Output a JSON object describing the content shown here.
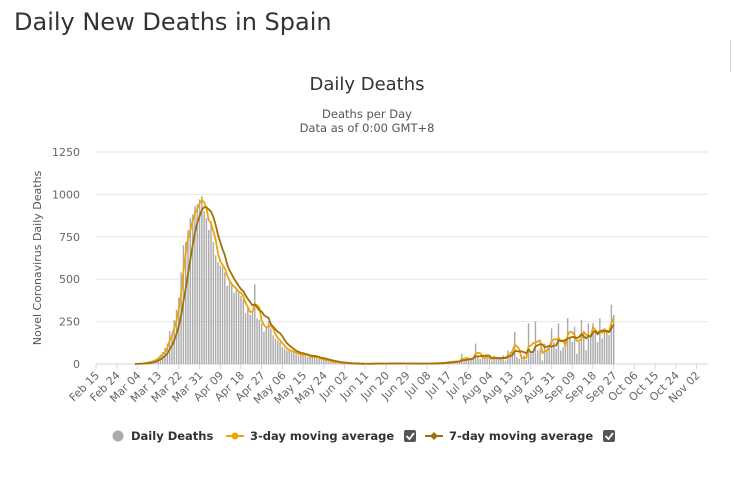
{
  "page": {
    "title": "Daily New Deaths in Spain"
  },
  "chart_data": {
    "type": "bar",
    "title": "Daily Deaths",
    "subtitle": [
      "Deaths per Day",
      "Data as of 0:00 GMT+8"
    ],
    "xlabel": "",
    "ylabel": "Novel Coronavirus Daily Deaths",
    "ylim": [
      0,
      1250
    ],
    "yticks": [
      0,
      250,
      500,
      750,
      1000,
      1250
    ],
    "xlim": [
      "Feb 15",
      "Nov 07"
    ],
    "xticks": [
      "Feb 15",
      "Feb 24",
      "Mar 04",
      "Mar 13",
      "Mar 22",
      "Mar 31",
      "Apr 09",
      "Apr 18",
      "Apr 27",
      "May 06",
      "May 15",
      "May 24",
      "Jun 02",
      "Jun 11",
      "Jun 20",
      "Jun 29",
      "Jul 08",
      "Jul 17",
      "Jul 26",
      "Aug 04",
      "Aug 13",
      "Aug 22",
      "Aug 31",
      "Sep 09",
      "Sep 18",
      "Sep 27",
      "Oct 06",
      "Oct 15",
      "Oct 24",
      "Nov 02"
    ],
    "grid": true,
    "legend_position": "bottom-center",
    "colors": {
      "bars": "#aaaaaa",
      "avg3": "#f0a30a",
      "avg7": "#a0700a",
      "grid": "#e6e6e6"
    },
    "series": [
      {
        "name": "Daily Deaths",
        "type": "bar",
        "x_start": "Mar 03",
        "values": [
          1,
          0,
          3,
          5,
          5,
          9,
          13,
          18,
          20,
          30,
          42,
          55,
          70,
          95,
          120,
          195,
          180,
          260,
          320,
          390,
          540,
          700,
          720,
          790,
          860,
          880,
          930,
          940,
          970,
          990,
          900,
          860,
          790,
          840,
          720,
          640,
          600,
          580,
          570,
          540,
          460,
          480,
          470,
          420,
          440,
          420,
          400,
          380,
          300,
          330,
          290,
          300,
          470,
          270,
          260,
          240,
          190,
          220,
          250,
          210,
          170,
          150,
          140,
          130,
          100,
          90,
          80,
          80,
          70,
          70,
          60,
          50,
          55,
          60,
          55,
          40,
          40,
          40,
          45,
          35,
          30,
          25,
          25,
          20,
          18,
          15,
          12,
          10,
          8,
          6,
          5,
          5,
          4,
          3,
          2,
          2,
          2,
          1,
          1,
          1,
          1,
          2,
          2,
          2,
          3,
          3,
          3,
          2,
          2,
          2,
          3,
          4,
          4,
          3,
          3,
          3,
          2,
          3,
          4,
          3,
          3,
          2,
          2,
          2,
          2,
          2,
          3,
          3,
          3,
          3,
          4,
          5,
          5,
          6,
          8,
          10,
          12,
          14,
          15,
          16,
          18,
          12,
          60,
          20,
          30,
          35,
          25,
          40,
          120,
          40,
          30,
          50,
          35,
          40,
          30,
          20,
          50,
          30,
          30,
          40,
          50,
          20,
          80,
          70,
          80,
          190,
          40,
          30,
          30,
          50,
          25,
          240,
          60,
          70,
          250,
          80,
          90,
          20,
          120,
          90,
          100,
          210,
          130,
          90,
          240,
          80,
          100,
          140,
          270,
          160,
          130,
          220,
          60,
          130,
          260,
          180,
          80,
          240,
          170,
          240,
          190,
          130,
          270,
          150,
          200,
          200,
          170,
          350,
          290
        ]
      },
      {
        "name": "3-day moving average",
        "type": "line",
        "marker": "circle"
      },
      {
        "name": "7-day moving average",
        "type": "line",
        "marker": "diamond"
      }
    ]
  },
  "legend": {
    "items": [
      {
        "label": "Daily Deaths"
      },
      {
        "label": "3-day moving average"
      },
      {
        "label": "7-day moving average"
      }
    ]
  }
}
